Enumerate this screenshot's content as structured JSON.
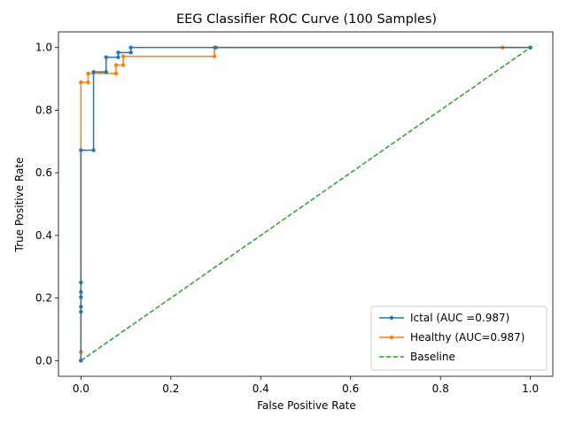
{
  "chart_data": {
    "type": "line",
    "title": "EEG Classifier ROC Curve (100 Samples)",
    "xlabel": "False Positive Rate",
    "ylabel": "True Positive Rate",
    "xlim": [
      -0.05,
      1.05
    ],
    "ylim": [
      -0.05,
      1.05
    ],
    "xticks": [
      "0.0",
      "0.2",
      "0.4",
      "0.6",
      "0.8",
      "1.0"
    ],
    "yticks": [
      "0.0",
      "0.2",
      "0.4",
      "0.6",
      "0.8",
      "1.0"
    ],
    "grid": false,
    "legend_position": "lower-right",
    "series": [
      {
        "name": "Ictal (AUC =0.987)",
        "color": "#1f77b4",
        "linestyle": "solid",
        "marker": "dot",
        "points": [
          [
            0.0,
            0.0
          ],
          [
            0.0,
            0.156
          ],
          [
            0.0,
            0.172
          ],
          [
            0.0,
            0.203
          ],
          [
            0.0,
            0.219
          ],
          [
            0.0,
            0.25
          ],
          [
            0.0,
            0.672
          ],
          [
            0.028,
            0.672
          ],
          [
            0.028,
            0.922
          ],
          [
            0.056,
            0.922
          ],
          [
            0.056,
            0.969
          ],
          [
            0.083,
            0.969
          ],
          [
            0.083,
            0.984
          ],
          [
            0.111,
            0.984
          ],
          [
            0.111,
            1.0
          ],
          [
            0.3,
            1.0
          ],
          [
            1.0,
            1.0
          ]
        ]
      },
      {
        "name": "Healthy (AUC=0.987)",
        "color": "#ff7f0e",
        "linestyle": "solid",
        "marker": "dot",
        "points": [
          [
            0.0,
            0.0
          ],
          [
            0.0,
            0.028
          ],
          [
            0.0,
            0.889
          ],
          [
            0.016,
            0.889
          ],
          [
            0.016,
            0.917
          ],
          [
            0.078,
            0.917
          ],
          [
            0.078,
            0.944
          ],
          [
            0.094,
            0.944
          ],
          [
            0.094,
            0.972
          ],
          [
            0.297,
            0.972
          ],
          [
            0.297,
            1.0
          ],
          [
            0.938,
            1.0
          ],
          [
            1.0,
            1.0
          ]
        ]
      },
      {
        "name": "Baseline",
        "color": "#2ca02c",
        "linestyle": "dashed",
        "marker": "none",
        "points": [
          [
            0.0,
            0.0
          ],
          [
            1.0,
            1.0
          ]
        ]
      }
    ]
  }
}
